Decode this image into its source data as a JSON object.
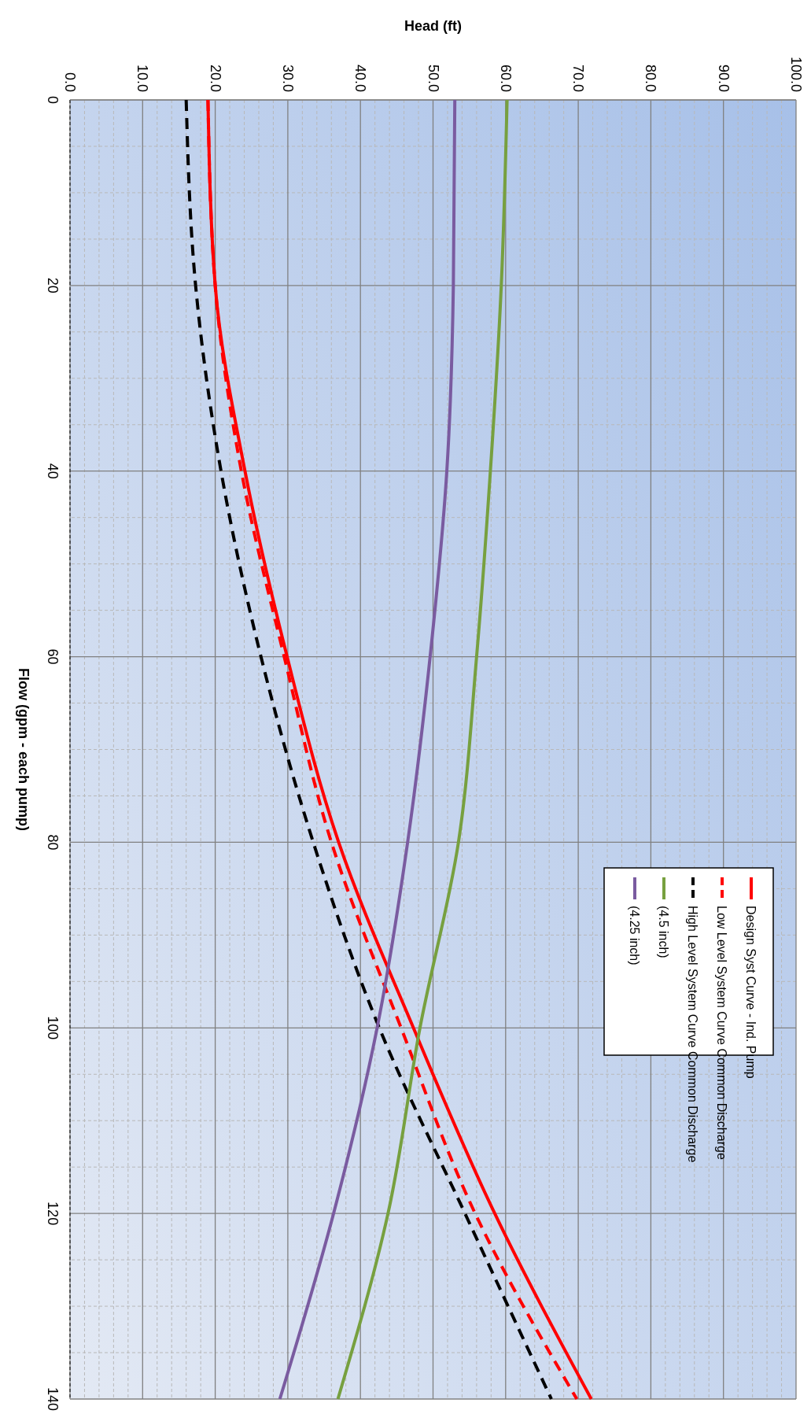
{
  "chart_data": {
    "type": "line",
    "xlabel": "Head (ft)",
    "ylabel": "Flow (gpm - each pump)",
    "xlim": [
      0,
      100
    ],
    "xticks": [
      {
        "value": 0,
        "label": "0.0"
      },
      {
        "value": 10,
        "label": "10.0"
      },
      {
        "value": 20,
        "label": "20.0"
      },
      {
        "value": 30,
        "label": "30.0"
      },
      {
        "value": 40,
        "label": "40.0"
      },
      {
        "value": 50,
        "label": "50.0"
      },
      {
        "value": 60,
        "label": "60.0"
      },
      {
        "value": 70,
        "label": "70.0"
      },
      {
        "value": 80,
        "label": "80.0"
      },
      {
        "value": 90,
        "label": "90.0"
      },
      {
        "value": 100,
        "label": "100.0"
      }
    ],
    "ylim": [
      140,
      0
    ],
    "yticks": [
      0,
      20,
      40,
      60,
      80,
      100,
      120,
      140
    ],
    "grid": true,
    "legend": "right",
    "marker": "none",
    "series": [
      {
        "name": "Design Syst Curve - Ind. Pump",
        "color": "#ff0000",
        "line_style": "solid",
        "x": [
          19,
          20,
          24.1,
          29.9,
          37,
          47.3,
          58.5,
          71.8
        ],
        "values": [
          0,
          20,
          40,
          60,
          80,
          100,
          120,
          140
        ]
      },
      {
        "name": "Low Level System Curve Common Discharge",
        "color": "#ff0000",
        "line_style": "dashed",
        "x": [
          19,
          20,
          23.6,
          29.5,
          36,
          45.6,
          55.8,
          69.8
        ],
        "values": [
          0,
          20,
          40,
          60,
          80,
          100,
          120,
          140
        ]
      },
      {
        "name": "High Level System Curve Common Discharge",
        "color": "#000000",
        "line_style": "dashed",
        "x": [
          16,
          17.3,
          20.8,
          26.3,
          33.5,
          42.6,
          54.4,
          66.3
        ],
        "values": [
          0,
          20,
          40,
          60,
          80,
          100,
          120,
          140
        ]
      },
      {
        "name": "(4.5 inch)",
        "color": "#77a03f",
        "line_style": "solid",
        "x": [
          60.2,
          59.4,
          57.9,
          56,
          53.5,
          48.2,
          43.8,
          36.9
        ],
        "values": [
          0,
          20,
          40,
          60,
          80,
          100,
          120,
          140
        ]
      },
      {
        "name": "(4.25 inch)",
        "color": "#7a5ba0",
        "line_style": "solid",
        "x": [
          53,
          52.8,
          51.9,
          49.6,
          46.5,
          42.3,
          36.3,
          28.9
        ],
        "values": [
          0,
          20,
          40,
          60,
          80,
          100,
          120,
          140
        ]
      }
    ]
  }
}
